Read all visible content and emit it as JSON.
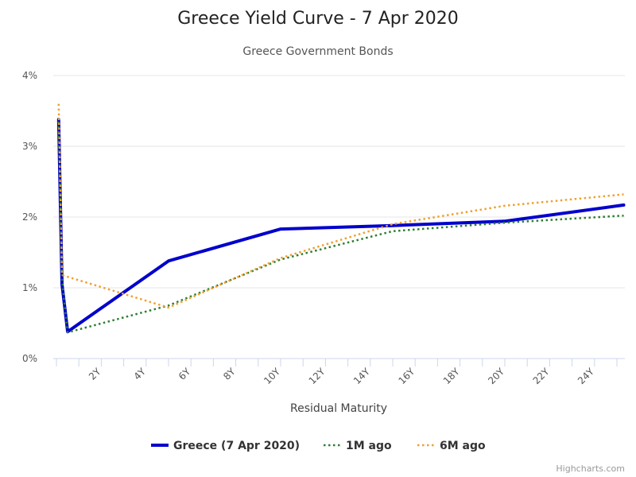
{
  "chart_data": {
    "type": "line",
    "title": "Greece Yield Curve - 7 Apr 2020",
    "subtitle": "Greece Government Bonds",
    "xlabel": "Residual Maturity",
    "ylabel": "",
    "xlim": [
      0,
      25.3
    ],
    "ylim": [
      0,
      4
    ],
    "x_tick_labels": [
      "2Y",
      "4Y",
      "6Y",
      "8Y",
      "10Y",
      "12Y",
      "14Y",
      "16Y",
      "18Y",
      "20Y",
      "22Y",
      "24Y"
    ],
    "y_tick_labels": [
      "0%",
      "1%",
      "2%",
      "3%",
      "4%"
    ],
    "grid": true,
    "legend_position": "bottom",
    "credits": "Highcharts.com",
    "series": [
      {
        "name": "Greece (7 Apr 2020)",
        "color": "#0000cc",
        "dash": "solid",
        "points": [
          [
            0.1,
            3.38
          ],
          [
            0.25,
            1.05
          ],
          [
            0.5,
            0.38
          ],
          [
            5,
            1.38
          ],
          [
            10,
            1.83
          ],
          [
            15,
            1.88
          ],
          [
            20,
            1.94
          ],
          [
            25.3,
            2.17
          ]
        ]
      },
      {
        "name": "1M ago",
        "color": "#2e7d32",
        "dash": "dotted",
        "points": [
          [
            0.1,
            3.35
          ],
          [
            0.25,
            1.1
          ],
          [
            0.5,
            0.37
          ],
          [
            5,
            0.75
          ],
          [
            10,
            1.4
          ],
          [
            15,
            1.8
          ],
          [
            20,
            1.92
          ],
          [
            25.3,
            2.02
          ]
        ]
      },
      {
        "name": "6M ago",
        "color": "#f0a030",
        "dash": "dotted",
        "points": [
          [
            0.1,
            3.6
          ],
          [
            0.25,
            1.18
          ],
          [
            5,
            0.72
          ],
          [
            10,
            1.42
          ],
          [
            15,
            1.9
          ],
          [
            20,
            2.16
          ],
          [
            25.3,
            2.32
          ]
        ]
      }
    ]
  }
}
